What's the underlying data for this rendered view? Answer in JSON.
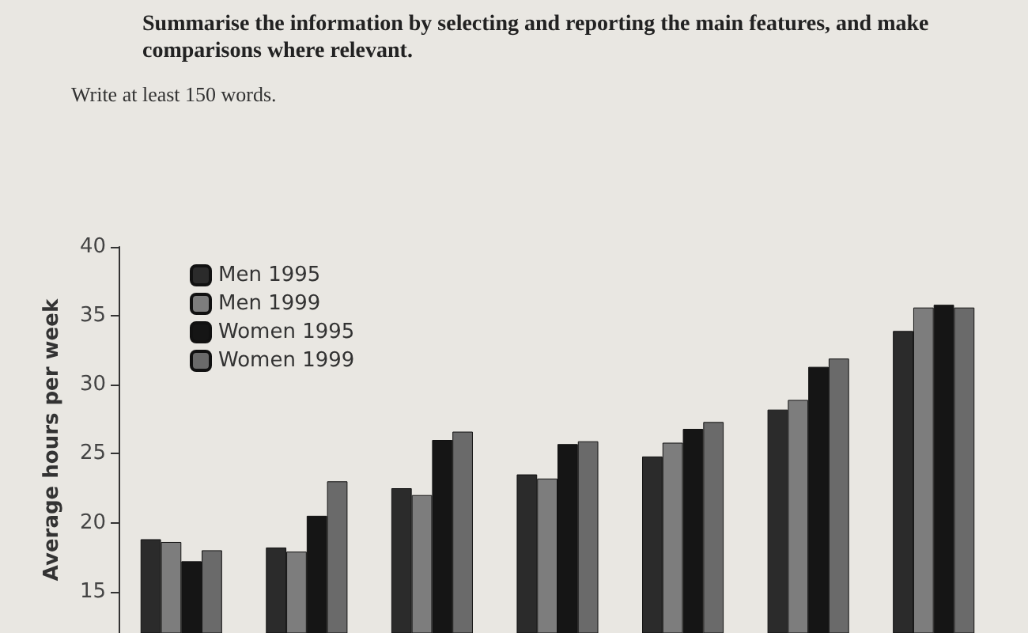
{
  "chart_data": {
    "type": "bar",
    "title": "Summarise the information by selecting and reporting the main features, and make comparisons where relevant.",
    "subtitle": "Write at least 150 words.",
    "ylabel": "Average hours per week",
    "categories": [
      null,
      null,
      null,
      null,
      null,
      null,
      null
    ],
    "series": [
      {
        "name": "Men 1995",
        "color": "#2b2b2b",
        "values": [
          18.8,
          18.2,
          22.5,
          23.5,
          24.8,
          28.2,
          33.9
        ]
      },
      {
        "name": "Men 1999",
        "color": "#7d7d7d",
        "values": [
          18.6,
          17.9,
          22.0,
          23.2,
          25.8,
          28.9,
          35.6
        ]
      },
      {
        "name": "Women 1995",
        "color": "#151515",
        "values": [
          17.2,
          20.5,
          26.0,
          25.7,
          26.8,
          31.3,
          35.8
        ]
      },
      {
        "name": "Women 1999",
        "color": "#6a6a6a",
        "values": [
          18.0,
          23.0,
          26.6,
          25.9,
          27.3,
          31.9,
          35.6
        ]
      }
    ],
    "ylim": [
      12,
      40
    ],
    "yticks": [
      15,
      20,
      25,
      30,
      35,
      40
    ],
    "tick_labels": "y",
    "grid": false,
    "legend": "top left"
  }
}
